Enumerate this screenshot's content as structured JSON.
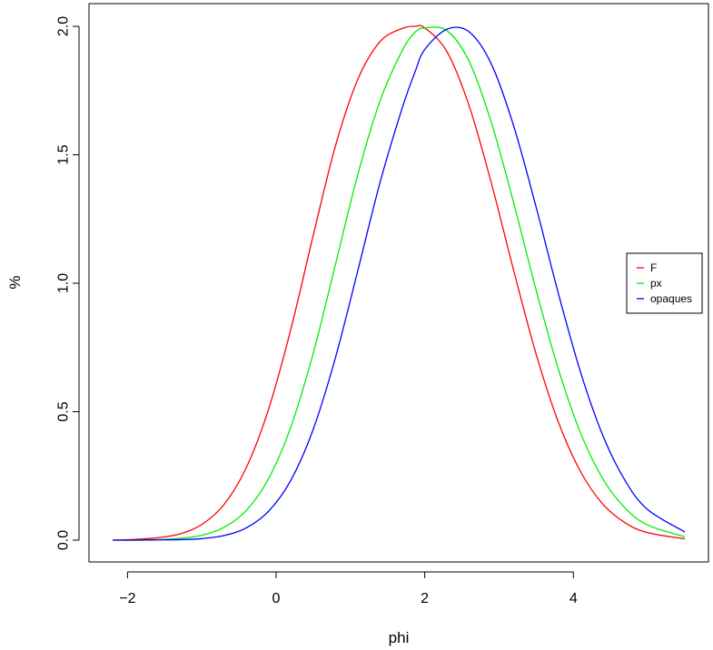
{
  "chart_data": {
    "type": "line",
    "title": "",
    "xlabel": "phi",
    "ylabel": "%",
    "xlim": [
      -2.2,
      5.5
    ],
    "ylim": [
      0,
      2.0
    ],
    "x_ticks": [
      -2,
      0,
      2,
      4
    ],
    "x_tick_labels": [
      "−2",
      "0",
      "2",
      "4"
    ],
    "y_ticks": [
      0.0,
      0.5,
      1.0,
      1.5,
      2.0
    ],
    "y_tick_labels": [
      "0.0",
      "0.5",
      "1.0",
      "1.5",
      "2.0"
    ],
    "grid": false,
    "legend_position": "right",
    "x": [
      -2.2,
      -1.9,
      -1.6,
      -1.3,
      -1.0,
      -0.7,
      -0.4,
      -0.1,
      0.2,
      0.5,
      0.8,
      1.1,
      1.4,
      1.7,
      1.87,
      2.0,
      2.3,
      2.6,
      2.9,
      3.2,
      3.5,
      3.8,
      4.1,
      4.4,
      4.7,
      5.0,
      5.5
    ],
    "series": [
      {
        "name": "F",
        "color": "#ff0000",
        "values": [
          0.0,
          0.003,
          0.009,
          0.024,
          0.061,
          0.139,
          0.283,
          0.511,
          0.823,
          1.187,
          1.536,
          1.794,
          1.941,
          1.992,
          2.0,
          1.994,
          1.901,
          1.688,
          1.386,
          1.046,
          0.723,
          0.458,
          0.265,
          0.139,
          0.067,
          0.029,
          0.005
        ]
      },
      {
        "name": "px",
        "color": "#00ee00",
        "values": [
          0.0,
          0.0,
          0.002,
          0.007,
          0.019,
          0.05,
          0.116,
          0.24,
          0.442,
          0.728,
          1.075,
          1.424,
          1.711,
          1.907,
          1.977,
          1.994,
          1.983,
          1.862,
          1.622,
          1.309,
          0.972,
          0.664,
          0.415,
          0.237,
          0.124,
          0.059,
          0.013
        ]
      },
      {
        "name": "opaques",
        "color": "#0000ff",
        "values": [
          0.0,
          0.0,
          0.001,
          0.002,
          0.006,
          0.018,
          0.048,
          0.113,
          0.234,
          0.432,
          0.712,
          1.05,
          1.394,
          1.685,
          1.823,
          1.91,
          1.989,
          1.978,
          1.851,
          1.609,
          1.295,
          0.958,
          0.651,
          0.405,
          0.23,
          0.119,
          0.032
        ]
      }
    ]
  }
}
